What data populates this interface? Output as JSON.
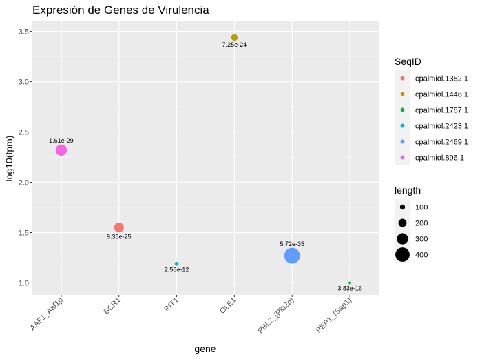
{
  "chart_data": {
    "type": "scatter",
    "title": "Expresión de Genes de Virulencia",
    "xlabel": "gene",
    "ylabel": "log10(tpm)",
    "categories": [
      "AAF1_Aaf1p",
      "BCR1",
      "INT1",
      "OLE1",
      "PBL2_(Plb2p)",
      "PEP1_(Sap1)"
    ],
    "ylim": [
      0.88,
      3.6
    ],
    "yticks": [
      "1.0",
      "1.5",
      "2.0",
      "2.5",
      "3.0",
      "3.5"
    ],
    "ytick_values": [
      1.0,
      1.5,
      2.0,
      2.5,
      3.0,
      3.5
    ],
    "grid": true,
    "points": [
      {
        "gene": "AAF1_Aaf1p",
        "y": 2.32,
        "seqid": "cpalmiol.896.1",
        "length": 300,
        "label": "1.61e-29",
        "label_pos": "above"
      },
      {
        "gene": "BCR1",
        "y": 1.55,
        "seqid": "cpalmiol.1382.1",
        "length": 250,
        "label": "9.35e-25",
        "label_pos": "below"
      },
      {
        "gene": "INT1",
        "y": 1.19,
        "seqid": "cpalmiol.2423.1",
        "length": 60,
        "label": "2.56e-12",
        "label_pos": "below"
      },
      {
        "gene": "OLE1",
        "y": 3.44,
        "seqid": "cpalmiol.1446.1",
        "length": 150,
        "label": "7.25e-24",
        "label_pos": "below"
      },
      {
        "gene": "PBL2_(Plb2p)",
        "y": 1.27,
        "seqid": "cpalmiol.2469.1",
        "length": 450,
        "label": "5.72e-35",
        "label_pos": "above"
      },
      {
        "gene": "PEP1_(Sap1)",
        "y": 1.0,
        "seqid": "cpalmiol.1787.1",
        "length": 20,
        "label": "3.83e-16",
        "label_pos": "below"
      }
    ],
    "legend_color": {
      "title": "SeqID",
      "placement": "right",
      "items": [
        {
          "name": "cpalmiol.1382.1",
          "color": "#F8766D"
        },
        {
          "name": "cpalmiol.1446.1",
          "color": "#B79F00"
        },
        {
          "name": "cpalmiol.1787.1",
          "color": "#00BA38"
        },
        {
          "name": "cpalmiol.2423.1",
          "color": "#00BFC4"
        },
        {
          "name": "cpalmiol.2469.1",
          "color": "#619CFF"
        },
        {
          "name": "cpalmiol.896.1",
          "color": "#F564E3"
        }
      ]
    },
    "legend_size": {
      "title": "length",
      "placement": "right",
      "items": [
        {
          "label": "100",
          "value": 100
        },
        {
          "label": "200",
          "value": 200
        },
        {
          "label": "300",
          "value": 300
        },
        {
          "label": "400",
          "value": 400
        }
      ]
    }
  }
}
